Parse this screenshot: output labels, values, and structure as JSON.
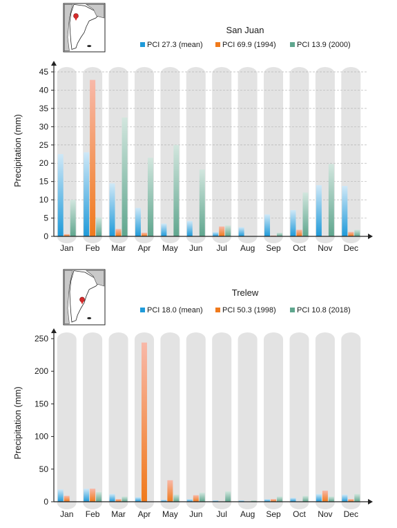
{
  "palette": {
    "mean": "#3aa6e0",
    "max": "#f08a3c",
    "min": "#7fb8a4",
    "column_bg": "#e3e3e3",
    "grid": "#b5b5b5",
    "axis": "#222222"
  },
  "chart_data": [
    {
      "type": "bar",
      "title": "San Juan",
      "ylabel": "Precipitation (mm)",
      "xlabel": "",
      "ylim": [
        0,
        45
      ],
      "yticks": [
        0,
        5,
        10,
        15,
        20,
        25,
        30,
        35,
        40,
        45
      ],
      "grid": true,
      "legend_position": "top-right",
      "inset_map": "argentina-locator-map",
      "categories": [
        "Jan",
        "Feb",
        "Mar",
        "Apr",
        "May",
        "Jun",
        "Jul",
        "Aug",
        "Sep",
        "Oct",
        "Nov",
        "Dec"
      ],
      "series": [
        {
          "name": "PCI 27.3 (mean)",
          "color": "#3aa6e0",
          "values": [
            22.5,
            23.0,
            14.5,
            7.8,
            3.5,
            4.2,
            1.2,
            2.5,
            6.0,
            7.2,
            14.0,
            13.8
          ]
        },
        {
          "name": "PCI 69.9 (1994)",
          "color": "#f08a3c",
          "values": [
            0.6,
            42.8,
            2.0,
            1.0,
            0.0,
            0.0,
            2.7,
            0.0,
            0.2,
            1.8,
            0.0,
            1.2
          ]
        },
        {
          "name": "PCI 13.9 (2000)",
          "color": "#7fb8a4",
          "values": [
            10.0,
            5.2,
            32.5,
            21.5,
            25.0,
            18.3,
            3.0,
            0.0,
            1.0,
            12.0,
            19.8,
            1.8
          ]
        }
      ]
    },
    {
      "type": "bar",
      "title": "Trelew",
      "ylabel": "Precipitation (mm)",
      "xlabel": "",
      "ylim": [
        0,
        250
      ],
      "yticks": [
        0,
        50,
        100,
        150,
        200,
        250
      ],
      "grid": false,
      "legend_position": "top-right",
      "inset_map": "argentina-locator-map",
      "categories": [
        "Jan",
        "Feb",
        "Mar",
        "Apr",
        "May",
        "Jun",
        "Jul",
        "Aug",
        "Sep",
        "Oct",
        "Nov",
        "Dec"
      ],
      "series": [
        {
          "name": "PCI 18.0 (mean)",
          "color": "#3aa6e0",
          "values": [
            19.0,
            20.0,
            12.0,
            7.0,
            3.0,
            4.0,
            2.0,
            2.0,
            4.0,
            6.0,
            12.0,
            11.0
          ]
        },
        {
          "name": "PCI 50.3 (1998)",
          "color": "#f08a3c",
          "values": [
            9.0,
            20.0,
            4.0,
            244.0,
            33.0,
            10.0,
            0.0,
            0.5,
            4.0,
            0.5,
            17.0,
            4.0
          ]
        },
        {
          "name": "PCI 10.8 (2018)",
          "color": "#7fb8a4",
          "values": [
            0.5,
            15.0,
            8.0,
            0.5,
            11.0,
            14.0,
            16.0,
            2.0,
            8.0,
            9.0,
            8.0,
            12.0
          ]
        }
      ]
    }
  ]
}
